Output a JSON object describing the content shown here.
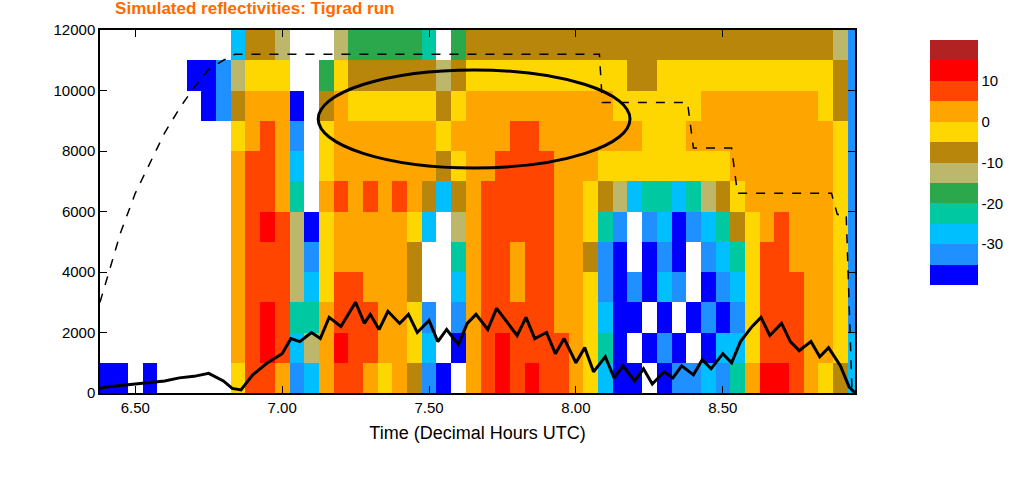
{
  "chart_data": {
    "type": "heatmap",
    "title": "Simulated reflectivities: Tigrad run",
    "x_label": "Time (Decimal Hours UTC)",
    "xlim": [
      6.38,
      8.95
    ],
    "xticks": [
      {
        "value": 6.5,
        "label": "6.50"
      },
      {
        "value": 7.0,
        "label": "7.00"
      },
      {
        "value": 7.5,
        "label": "7.50"
      },
      {
        "value": 8.0,
        "label": "8.00"
      },
      {
        "value": 8.5,
        "label": "8.50"
      }
    ],
    "ylim": [
      0,
      12000
    ],
    "yticks": [
      0,
      2000,
      4000,
      6000,
      8000,
      10000,
      12000
    ],
    "grid": false,
    "colors": [
      "#0000ff",
      "#1e90ff",
      "#00bfff",
      "#00c8a0",
      "#2ca84c",
      "#bdb76b",
      "#b8860b",
      "#ffd700",
      "#ffa500",
      "#ff4500",
      "#ff0000",
      "#b22222"
    ],
    "colorbar": {
      "range": [
        -40,
        20
      ],
      "ticks": [
        -30,
        -20,
        -10,
        0,
        10
      ]
    },
    "x": [
      6.4,
      6.45,
      6.5,
      6.55,
      6.6,
      6.65,
      6.7,
      6.75,
      6.8,
      6.85,
      6.9,
      6.95,
      7.0,
      7.05,
      7.1,
      7.15,
      7.2,
      7.25,
      7.3,
      7.35,
      7.4,
      7.45,
      7.5,
      7.55,
      7.6,
      7.65,
      7.7,
      7.75,
      7.8,
      7.85,
      7.9,
      7.95,
      8.0,
      8.05,
      8.1,
      8.15,
      8.2,
      8.25,
      8.3,
      8.35,
      8.4,
      8.45,
      8.5,
      8.55,
      8.6,
      8.65,
      8.7,
      8.75,
      8.8,
      8.85,
      8.9,
      8.95
    ],
    "y": [
      500,
      1500,
      2500,
      3500,
      4500,
      5500,
      6500,
      7500,
      8500,
      9500,
      10500,
      11500
    ],
    "cells": [
      [
        -38,
        null,
        null,
        null,
        null,
        null,
        null,
        null,
        null,
        null,
        null,
        null
      ],
      [
        -38,
        null,
        null,
        null,
        null,
        null,
        null,
        null,
        null,
        null,
        null,
        null
      ],
      [
        null,
        null,
        null,
        null,
        null,
        null,
        null,
        null,
        null,
        null,
        null,
        null
      ],
      [
        -38,
        null,
        null,
        null,
        null,
        null,
        null,
        null,
        null,
        null,
        null,
        null
      ],
      [
        null,
        null,
        null,
        null,
        null,
        null,
        null,
        null,
        null,
        null,
        null,
        null
      ],
      [
        null,
        null,
        null,
        null,
        null,
        null,
        null,
        null,
        null,
        null,
        null,
        null
      ],
      [
        null,
        null,
        null,
        null,
        null,
        null,
        null,
        null,
        null,
        null,
        -38,
        null
      ],
      [
        null,
        null,
        null,
        null,
        null,
        null,
        null,
        null,
        null,
        -38,
        -38,
        null
      ],
      [
        null,
        null,
        null,
        null,
        null,
        null,
        null,
        null,
        null,
        -33,
        -33,
        null
      ],
      [
        -3,
        2,
        2,
        2,
        2,
        2,
        2,
        2,
        -3,
        -8,
        -13,
        -28
      ],
      [
        7,
        7,
        7,
        7,
        7,
        7,
        7,
        7,
        2,
        2,
        -3,
        -8
      ],
      [
        7,
        12,
        12,
        7,
        7,
        12,
        7,
        7,
        7,
        2,
        -3,
        -8
      ],
      [
        2,
        7,
        7,
        7,
        7,
        7,
        2,
        2,
        2,
        2,
        -3,
        -13
      ],
      [
        -33,
        -28,
        -23,
        -13,
        -13,
        -13,
        -23,
        -28,
        -33,
        -38,
        null,
        null
      ],
      [
        -28,
        -13,
        -23,
        -28,
        -33,
        -38,
        null,
        null,
        null,
        null,
        null,
        null
      ],
      [
        2,
        2,
        2,
        -3,
        -3,
        -3,
        2,
        -3,
        -3,
        -8,
        -18,
        null
      ],
      [
        7,
        12,
        7,
        7,
        2,
        2,
        7,
        2,
        2,
        2,
        -3,
        -13
      ],
      [
        7,
        7,
        7,
        7,
        2,
        2,
        2,
        2,
        2,
        -3,
        -8,
        -18
      ],
      [
        2,
        7,
        7,
        2,
        2,
        2,
        7,
        2,
        2,
        -3,
        -8,
        -18
      ],
      [
        -3,
        2,
        2,
        2,
        2,
        2,
        2,
        2,
        2,
        -3,
        -8,
        -18
      ],
      [
        2,
        2,
        2,
        2,
        2,
        2,
        7,
        2,
        2,
        -3,
        -8,
        -18
      ],
      [
        -8,
        -3,
        -3,
        -8,
        -8,
        -3,
        2,
        2,
        2,
        -3,
        -8,
        -18
      ],
      [
        -33,
        -28,
        -33,
        null,
        null,
        -28,
        -8,
        2,
        2,
        -3,
        -8,
        -23
      ],
      [
        -38,
        null,
        null,
        null,
        null,
        null,
        -28,
        -8,
        -3,
        -8,
        -13,
        null
      ],
      [
        null,
        -38,
        -33,
        -28,
        -23,
        -13,
        -8,
        -3,
        2,
        -3,
        -8,
        -18
      ],
      [
        2,
        2,
        2,
        2,
        2,
        2,
        2,
        2,
        2,
        2,
        -3,
        -8
      ],
      [
        7,
        7,
        7,
        7,
        7,
        7,
        7,
        2,
        2,
        2,
        -3,
        -8
      ],
      [
        12,
        12,
        7,
        7,
        7,
        7,
        7,
        7,
        2,
        2,
        -3,
        -8
      ],
      [
        7,
        7,
        7,
        2,
        2,
        7,
        7,
        7,
        7,
        2,
        -3,
        -8
      ],
      [
        12,
        7,
        7,
        7,
        7,
        7,
        7,
        7,
        7,
        2,
        -3,
        -8
      ],
      [
        7,
        7,
        7,
        7,
        7,
        7,
        7,
        7,
        2,
        2,
        -3,
        -8
      ],
      [
        7,
        7,
        2,
        2,
        2,
        2,
        2,
        2,
        2,
        2,
        -3,
        -8
      ],
      [
        2,
        2,
        2,
        2,
        2,
        2,
        2,
        2,
        2,
        2,
        -3,
        -8
      ],
      [
        -3,
        -3,
        -3,
        -3,
        -8,
        -3,
        -3,
        2,
        2,
        2,
        -3,
        -8
      ],
      [
        -28,
        -23,
        -28,
        -33,
        -33,
        -23,
        -8,
        -3,
        2,
        2,
        -3,
        -8
      ],
      [
        -38,
        -38,
        -38,
        -38,
        -38,
        -33,
        -13,
        -3,
        2,
        -3,
        -3,
        -8
      ],
      [
        -38,
        null,
        -38,
        -33,
        null,
        null,
        -28,
        -3,
        2,
        -3,
        -8,
        -8
      ],
      [
        null,
        -38,
        null,
        -38,
        -38,
        -33,
        -23,
        -3,
        -3,
        -3,
        -8,
        -8
      ],
      [
        -38,
        -33,
        -38,
        -28,
        -33,
        -28,
        -23,
        -3,
        -3,
        -3,
        -3,
        -8
      ],
      [
        -33,
        -38,
        null,
        -33,
        -38,
        -38,
        -28,
        -3,
        -3,
        -3,
        -3,
        -8
      ],
      [
        -33,
        null,
        -38,
        null,
        null,
        -33,
        -23,
        -3,
        2,
        -3,
        -3,
        -8
      ],
      [
        -28,
        -38,
        -33,
        -38,
        -33,
        -28,
        -13,
        -3,
        2,
        2,
        -3,
        -8
      ],
      [
        -33,
        -28,
        -38,
        -33,
        -28,
        -23,
        -8,
        -3,
        2,
        2,
        -3,
        -8
      ],
      [
        -23,
        -28,
        -33,
        -28,
        -23,
        -8,
        -3,
        2,
        2,
        2,
        -3,
        -8
      ],
      [
        2,
        -3,
        -3,
        -3,
        -3,
        -3,
        2,
        2,
        2,
        2,
        -3,
        -8
      ],
      [
        12,
        7,
        7,
        7,
        7,
        2,
        2,
        2,
        2,
        2,
        -3,
        -8
      ],
      [
        12,
        7,
        7,
        7,
        7,
        7,
        2,
        2,
        2,
        2,
        -3,
        -8
      ],
      [
        7,
        7,
        7,
        7,
        2,
        2,
        2,
        2,
        2,
        2,
        -3,
        -8
      ],
      [
        2,
        2,
        2,
        2,
        2,
        2,
        2,
        2,
        2,
        2,
        -3,
        -8
      ],
      [
        -3,
        2,
        2,
        2,
        2,
        2,
        2,
        2,
        2,
        -3,
        -3,
        -8
      ],
      [
        -8,
        -3,
        -3,
        -3,
        -3,
        -3,
        -3,
        -3,
        -3,
        -8,
        -8,
        -13
      ],
      [
        -28,
        -28,
        -33,
        -33,
        -33,
        -33,
        -33,
        -33,
        -33,
        -33,
        -33,
        -33
      ]
    ],
    "series": [
      {
        "type": "line",
        "line_style": "dashed",
        "color": "#000000",
        "x": [
          6.38,
          6.45,
          6.5,
          6.55,
          6.6,
          6.65,
          6.7,
          6.75,
          6.8,
          6.84,
          8.08,
          8.09,
          8.38,
          8.4,
          8.53,
          8.55,
          8.87,
          8.89,
          8.92,
          8.94
        ],
        "values": [
          3000,
          5300,
          6600,
          7600,
          8600,
          9400,
          10100,
          10700,
          11000,
          11200,
          11200,
          9600,
          9600,
          8100,
          8100,
          6600,
          6600,
          5900,
          5900,
          0
        ]
      },
      {
        "type": "line",
        "line_style": "solid",
        "color": "#000000",
        "x": [
          6.38,
          6.4,
          6.45,
          6.5,
          6.55,
          6.6,
          6.65,
          6.7,
          6.75,
          6.8,
          6.83,
          6.86,
          6.9,
          6.95,
          7.0,
          7.03,
          7.06,
          7.1,
          7.13,
          7.16,
          7.2,
          7.23,
          7.25,
          7.28,
          7.3,
          7.33,
          7.36,
          7.4,
          7.43,
          7.46,
          7.5,
          7.53,
          7.56,
          7.6,
          7.63,
          7.66,
          7.7,
          7.73,
          7.76,
          7.8,
          7.83,
          7.86,
          7.9,
          7.93,
          7.96,
          8.0,
          8.03,
          8.06,
          8.1,
          8.13,
          8.16,
          8.2,
          8.23,
          8.26,
          8.3,
          8.33,
          8.36,
          8.4,
          8.43,
          8.46,
          8.5,
          8.53,
          8.56,
          8.6,
          8.63,
          8.66,
          8.7,
          8.73,
          8.76,
          8.8,
          8.83,
          8.86,
          8.9,
          8.93,
          8.95
        ],
        "values": [
          150,
          200,
          250,
          300,
          350,
          400,
          500,
          550,
          650,
          400,
          150,
          100,
          600,
          1000,
          1300,
          1800,
          1700,
          2000,
          1800,
          2500,
          2200,
          2700,
          3000,
          2300,
          2600,
          2100,
          2700,
          2300,
          2600,
          2000,
          2400,
          1700,
          2100,
          1600,
          2300,
          2600,
          2100,
          2800,
          2400,
          1900,
          2500,
          1800,
          2000,
          1300,
          1800,
          1000,
          1500,
          700,
          1200,
          500,
          900,
          400,
          800,
          300,
          700,
          500,
          900,
          600,
          1100,
          800,
          1300,
          1000,
          1700,
          2200,
          2500,
          1900,
          2300,
          1700,
          1400,
          1700,
          1200,
          1500,
          900,
          200,
          0
        ]
      }
    ]
  }
}
